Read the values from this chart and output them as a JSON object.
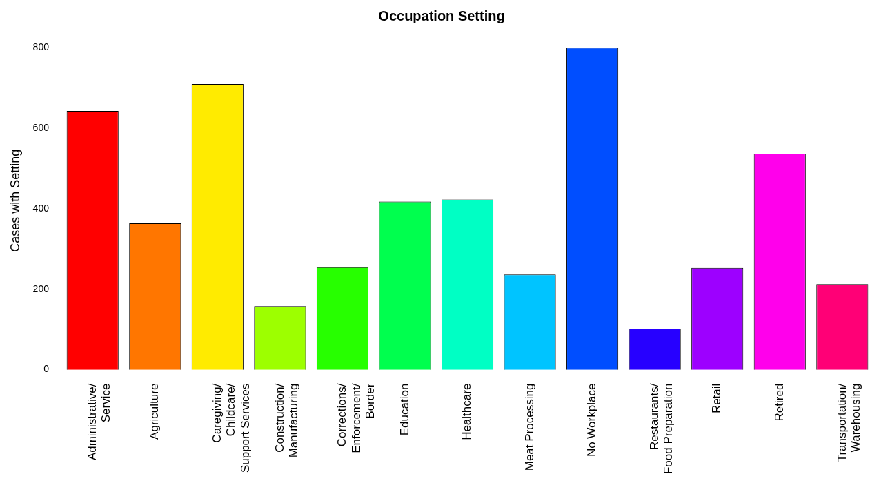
{
  "chart_data": {
    "type": "bar",
    "title": "Occupation Setting",
    "ylabel": "Cases with Setting",
    "categories": [
      "Administrative/\nService",
      "Agriculture",
      "Caregiving/\nChildcare/\nSupport Services",
      "Construction/\nManufacturing",
      "Corrections/\nEnforcement/\nBorder",
      "Education",
      "Healthcare",
      "Meat Processing",
      "No Workplace",
      "Restaurants/\nFood Preparation",
      "Retail",
      "Retired",
      "Transportation/\nWarehousing"
    ],
    "values": [
      643,
      364,
      710,
      158,
      255,
      418,
      423,
      237,
      800,
      102,
      253,
      537,
      213
    ],
    "colors": [
      "#ff0000",
      "#ff7600",
      "#ffeb00",
      "#9dff00",
      "#27ff00",
      "#00ff4e",
      "#00ffc4",
      "#00c4ff",
      "#004eff",
      "#2700ff",
      "#9d00ff",
      "#ff00eb",
      "#ff0076"
    ],
    "ylim": [
      0,
      840
    ],
    "yticks": [
      0,
      200,
      400,
      600,
      800
    ],
    "grid": false,
    "legend": false
  }
}
